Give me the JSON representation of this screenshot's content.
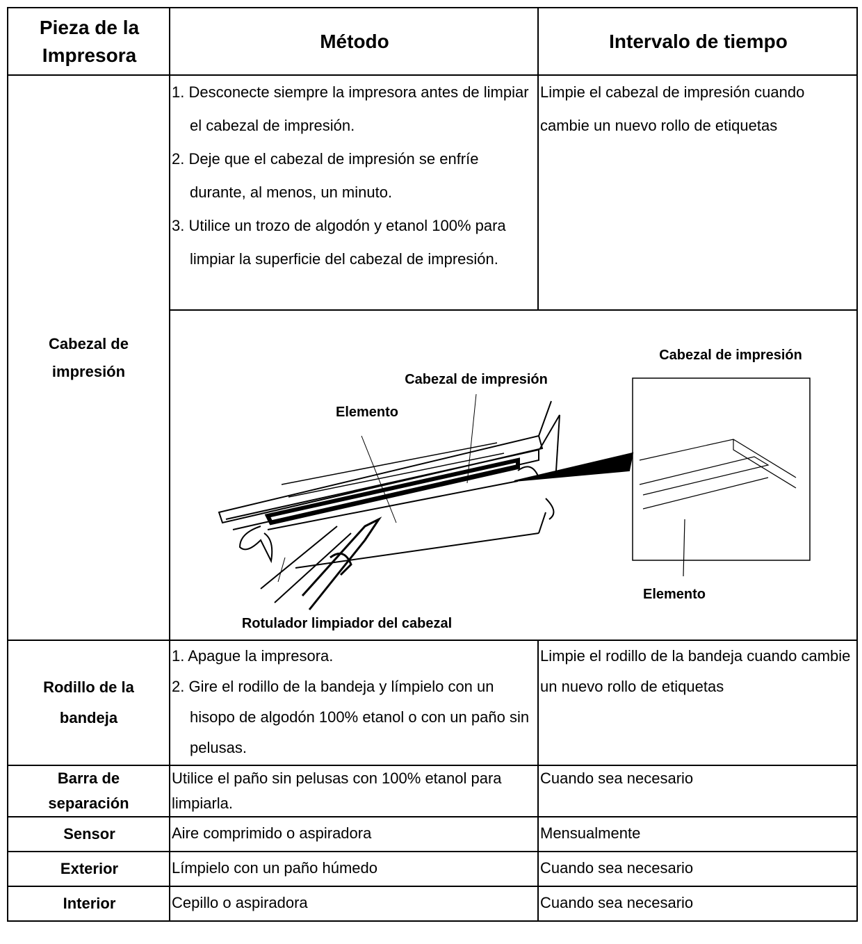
{
  "table": {
    "header": [
      "Pieza de la Impresora",
      "Método",
      "Intervalo de tiempo"
    ],
    "rows": [
      {
        "part": "Cabezal de impresión",
        "method": [
          "1. Desconecte siempre la impresora antes de limpiar el cabezal de impresión.",
          "2. Deje que el cabezal de impresión se enfríe durante, al menos, un minuto.",
          "3. Utilice un trozo de algodón y etanol 100% para limpiar la superficie del cabezal de impresión."
        ],
        "interval": "Limpie el cabezal de impresión cuando cambie un nuevo rollo de etiquetas",
        "figure": {
          "print_head": "Cabezal de impresión",
          "element": "Elemento",
          "pen": "Rotulador limpiador del cabezal",
          "inset_title": "Cabezal de impresión",
          "inset_element": "Elemento"
        }
      },
      {
        "part": "Rodillo de la bandeja",
        "method": [
          "1. Apague la impresora.",
          "2. Gire el rodillo de la bandeja y límpielo con un hisopo de algodón 100% etanol o con un paño sin pelusas."
        ],
        "interval": "Limpie el rodillo de la bandeja cuando cambie un nuevo rollo de etiquetas"
      },
      {
        "part": "Barra de separación",
        "method": [
          "Utilice el paño sin pelusas con 100% etanol para limpiarla."
        ],
        "interval": "Cuando sea necesario"
      },
      {
        "part": "Sensor",
        "method": [
          "Aire comprimido o aspiradora"
        ],
        "interval": "Mensualmente"
      },
      {
        "part": "Exterior",
        "method": [
          "Límpielo con un paño húmedo"
        ],
        "interval": "Cuando sea necesario"
      },
      {
        "part": "Interior",
        "method": [
          "Cepillo o aspiradora"
        ],
        "interval": "Cuando sea necesario"
      }
    ]
  }
}
